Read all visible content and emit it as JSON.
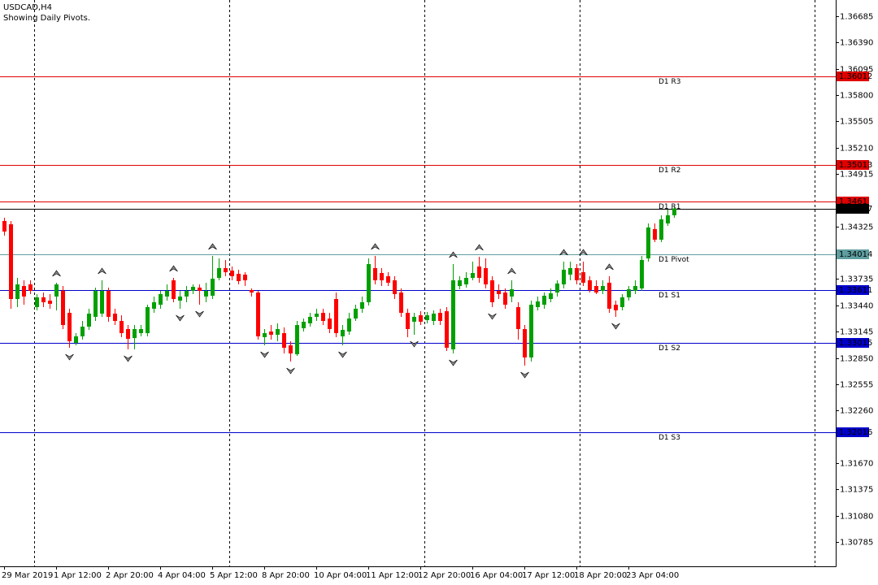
{
  "chart_data": {
    "type": "candlestick",
    "title": "USDCAD,H4",
    "subtitle": "Showing Daily Pivots.",
    "categories": [
      "29 Mar 2019",
      null,
      null,
      null,
      null,
      null,
      null,
      null,
      "1 Apr 12:00",
      null,
      null,
      null,
      null,
      null,
      null,
      null,
      "2 Apr 20:00",
      null,
      null,
      null,
      null,
      null,
      null,
      null,
      "4 Apr 04:00",
      null,
      null,
      null,
      null,
      null,
      null,
      null,
      "5 Apr 12:00",
      null,
      null,
      null,
      null,
      null,
      null,
      null,
      "8 Apr 20:00",
      null,
      null,
      null,
      null,
      null,
      null,
      null,
      "10 Apr 04:00",
      null,
      null,
      null,
      null,
      null,
      null,
      null,
      "11 Apr 12:00",
      null,
      null,
      null,
      null,
      null,
      null,
      null,
      "12 Apr 20:00",
      null,
      null,
      null,
      null,
      null,
      null,
      null,
      "16 Apr 04:00",
      null,
      null,
      null,
      null,
      null,
      null,
      null,
      "17 Apr 12:00",
      null,
      null,
      null,
      null,
      null,
      null,
      null,
      "18 Apr 20:00",
      null,
      null,
      null,
      null,
      null,
      null,
      null,
      "23 Apr 04:00",
      null,
      null,
      null,
      null,
      null,
      null,
      null
    ],
    "open": [
      1.34387,
      1.3435,
      1.33511,
      1.33657,
      1.33675,
      1.3342,
      1.3353,
      1.33493,
      1.33539,
      1.33602,
      1.33356,
      1.33019,
      1.33092,
      1.33201,
      1.33311,
      1.33347,
      1.33602,
      1.33347,
      1.33265,
      1.33174,
      1.33073,
      1.33128,
      1.33128,
      1.33402,
      1.33447,
      1.33539,
      1.33721,
      1.33493,
      1.33539,
      1.33602,
      1.33639,
      1.33539,
      1.33548,
      1.33748,
      1.33858,
      1.3383,
      1.33794,
      1.33785,
      1.33612,
      1.33584,
      1.33083,
      1.33146,
      1.3311,
      1.33128,
      1.32991,
      1.32891,
      1.33183,
      1.33238,
      1.33311,
      1.33356,
      1.33292,
      1.33511,
      1.33092,
      1.33146,
      1.33292,
      1.33402,
      1.33475,
      1.33858,
      1.33803,
      1.33767,
      1.33721,
      1.33584,
      1.33356,
      1.33256,
      1.33329,
      1.33274,
      1.33265,
      1.33356,
      1.33374,
      1.32946,
      1.33657,
      1.33675,
      1.33748,
      1.33876,
      1.33858,
      1.33721,
      1.33602,
      1.33584,
      1.33539,
      1.3342,
      1.33174,
      1.32855,
      1.3342,
      1.33447,
      1.33511,
      1.33584,
      1.33675,
      1.33785,
      1.33858,
      1.33812,
      1.33721,
      1.33657,
      1.33602,
      1.33694,
      1.33447,
      1.3342,
      1.3353,
      1.33602,
      1.3363,
      1.33967,
      1.34296,
      1.34177,
      1.34359,
      1.34451
    ],
    "high": [
      1.34423,
      1.34387,
      1.33748,
      1.33721,
      1.33721,
      1.33566,
      1.33584,
      1.33566,
      1.33694,
      1.33657,
      1.33402,
      1.33128,
      1.33265,
      1.33402,
      1.33639,
      1.33721,
      1.33639,
      1.33402,
      1.33329,
      1.33219,
      1.33219,
      1.33219,
      1.33447,
      1.33539,
      1.33602,
      1.33675,
      1.33748,
      1.33602,
      1.33657,
      1.33675,
      1.33675,
      1.33694,
      1.33995,
      1.33967,
      1.33949,
      1.33876,
      1.3384,
      1.33812,
      1.3363,
      1.33602,
      1.33174,
      1.33219,
      1.33238,
      1.33192,
      1.33037,
      1.33265,
      1.33292,
      1.33356,
      1.33402,
      1.33402,
      1.33356,
      1.33584,
      1.33219,
      1.33356,
      1.33447,
      1.33539,
      1.33967,
      1.33995,
      1.33858,
      1.33812,
      1.33767,
      1.3363,
      1.33402,
      1.33356,
      1.33374,
      1.33365,
      1.33384,
      1.33402,
      1.3342,
      1.33903,
      1.33767,
      1.33812,
      1.33931,
      1.33985,
      1.33967,
      1.33767,
      1.33675,
      1.3363,
      1.33721,
      1.33475,
      1.33219,
      1.33493,
      1.33539,
      1.33584,
      1.3363,
      1.33721,
      1.33931,
      1.33931,
      1.33903,
      1.33931,
      1.33767,
      1.33721,
      1.33721,
      1.33767,
      1.33493,
      1.33566,
      1.33657,
      1.33721,
      1.33995,
      1.34359,
      1.34359,
      1.34451,
      1.34514,
      1.34542
    ],
    "low": [
      1.34223,
      1.33402,
      1.3342,
      1.33447,
      1.33566,
      1.33384,
      1.3342,
      1.33402,
      1.33384,
      1.33174,
      1.32964,
      1.32991,
      1.33055,
      1.33165,
      1.33265,
      1.33311,
      1.33256,
      1.33219,
      1.33083,
      1.32946,
      1.32946,
      1.33092,
      1.33092,
      1.33356,
      1.33402,
      1.33493,
      1.33475,
      1.33402,
      1.33475,
      1.33566,
      1.33447,
      1.33475,
      1.33511,
      1.33721,
      1.33767,
      1.33721,
      1.33675,
      1.33657,
      1.33539,
      1.33055,
      1.32991,
      1.33055,
      1.33037,
      1.329,
      1.32809,
      1.32873,
      1.33146,
      1.33201,
      1.33265,
      1.33219,
      1.33128,
      1.33083,
      1.32991,
      1.3311,
      1.33265,
      1.33356,
      1.33438,
      1.33675,
      1.33657,
      1.33657,
      1.33511,
      1.33311,
      1.33083,
      1.3311,
      1.33219,
      1.33238,
      1.33219,
      1.33219,
      1.32928,
      1.329,
      1.33621,
      1.33639,
      1.33721,
      1.33694,
      1.3363,
      1.3342,
      1.33511,
      1.33402,
      1.33475,
      1.33055,
      1.32763,
      1.32809,
      1.33384,
      1.33402,
      1.33475,
      1.33539,
      1.3363,
      1.33721,
      1.33675,
      1.33657,
      1.33584,
      1.33566,
      1.33566,
      1.33356,
      1.33311,
      1.33384,
      1.33493,
      1.33566,
      1.33602,
      1.33931,
      1.3415,
      1.3415,
      1.34332,
      1.34423
    ],
    "close": [
      1.34268,
      1.33511,
      1.33675,
      1.33539,
      1.33602,
      1.3353,
      1.33475,
      1.33457,
      1.33675,
      1.33219,
      1.33037,
      1.33092,
      1.33201,
      1.33347,
      1.33602,
      1.33602,
      1.33311,
      1.33265,
      1.33128,
      1.33064,
      1.33174,
      1.33174,
      1.3342,
      1.33475,
      1.33566,
      1.33602,
      1.33511,
      1.33539,
      1.33602,
      1.33648,
      1.33602,
      1.33602,
      1.33739,
      1.33858,
      1.33812,
      1.33767,
      1.33712,
      1.33721,
      1.33584,
      1.33092,
      1.33128,
      1.3311,
      1.33174,
      1.32964,
      1.329,
      1.33219,
      1.33256,
      1.33311,
      1.33347,
      1.33265,
      1.33174,
      1.33128,
      1.33165,
      1.33292,
      1.33402,
      1.33475,
      1.33903,
      1.33721,
      1.33721,
      1.33694,
      1.33566,
      1.33356,
      1.33174,
      1.33311,
      1.33256,
      1.33329,
      1.33347,
      1.33265,
      1.32964,
      1.33721,
      1.33721,
      1.33748,
      1.33803,
      1.33748,
      1.33675,
      1.33475,
      1.33566,
      1.33447,
      1.33621,
      1.33174,
      1.32855,
      1.33447,
      1.33484,
      1.33548,
      1.33575,
      1.33685,
      1.3384,
      1.33858,
      1.33721,
      1.33694,
      1.33612,
      1.33584,
      1.33657,
      1.33402,
      1.33384,
      1.3353,
      1.33621,
      1.33657,
      1.33949,
      1.34314,
      1.34177,
      1.34405,
      1.34451,
      1.34527
    ],
    "up_color": "#00a000",
    "down_color": "#ff0000",
    "fractals_up": [
      8,
      15,
      26,
      32,
      57,
      69,
      73,
      78,
      86,
      89,
      93
    ],
    "fractals_down": [
      10,
      19,
      27,
      30,
      40,
      44,
      52,
      63,
      69,
      75,
      80,
      94
    ],
    "levels": [
      {
        "name": "D1 R3",
        "value": 1.36012,
        "color": "#e00000"
      },
      {
        "name": "D1 R2",
        "value": 1.35013,
        "color": "#e00000"
      },
      {
        "name": "D1 R1",
        "value": 1.3461,
        "color": "#e00000"
      },
      {
        "name": "D1 Pivot",
        "value": 1.34014,
        "color": "#5f9ea0"
      },
      {
        "name": "D1 S1",
        "value": 1.33611,
        "color": "#0000cd"
      },
      {
        "name": "D1 S2",
        "value": 1.33015,
        "color": "#0000cd"
      },
      {
        "name": "D1 S3",
        "value": 1.32016,
        "color": "#0000cd"
      }
    ],
    "last_price": 1.34527,
    "ylim": [
      1.30511,
      1.36867
    ],
    "yticks": [
      1.36685,
      {
        "value": 1.3639,
        "label": "1.36390"
      },
      1.36095,
      {
        "value": 1.358,
        "label": "1.35800"
      },
      1.35505,
      {
        "value": 1.3521,
        "label": "1.35210"
      },
      1.34915,
      1.34325,
      1.33735,
      {
        "value": 1.3344,
        "label": "1.33440"
      },
      1.33145,
      {
        "value": 1.3285,
        "label": "1.32850"
      },
      1.32555,
      {
        "value": 1.3226,
        "label": "1.32260"
      },
      {
        "value": 1.3167,
        "label": "1.31670"
      },
      1.31375,
      {
        "value": 1.3108,
        "label": "1.31080"
      },
      1.30785
    ]
  }
}
